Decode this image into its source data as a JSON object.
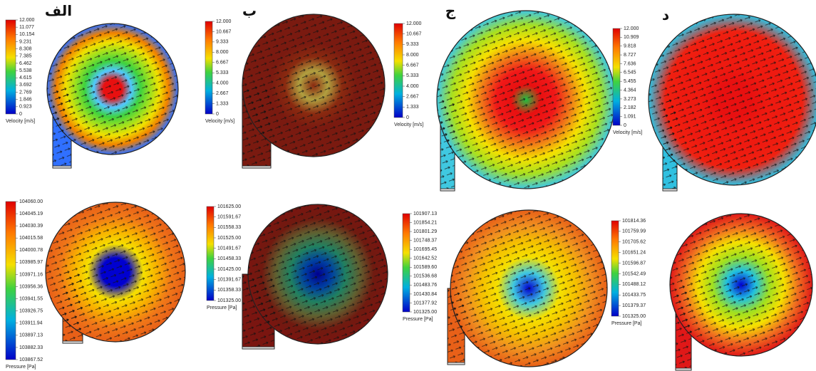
{
  "panels": [
    {
      "label": "الف",
      "velocity": {
        "title": "Velocity [m/s]",
        "ticks": [
          "12.000",
          "11.077",
          "10.154",
          "9.231",
          "8.308",
          "7.385",
          "6.462",
          "5.538",
          "4.615",
          "3.692",
          "2.769",
          "1.846",
          "0.923",
          "0"
        ]
      },
      "pressure": {
        "title": "Pressure [Pa]",
        "ticks": [
          "104060.00",
          "104045.19",
          "104030.39",
          "104015.58",
          "104000.78",
          "103985.97",
          "103971.16",
          "103956.36",
          "103941.55",
          "103926.75",
          "103911.94",
          "103897.13",
          "103882.33",
          "103867.52"
        ]
      }
    },
    {
      "label": "ب",
      "velocity": {
        "title": "Velocity [m/s]",
        "ticks": [
          "12.000",
          "10.667",
          "9.333",
          "8.000",
          "6.667",
          "5.333",
          "4.000",
          "2.667",
          "1.333",
          "0"
        ]
      },
      "pressure": {
        "title": "Pressure [Pa]",
        "ticks": [
          "101625.00",
          "101591.67",
          "101558.33",
          "101525.00",
          "101491.67",
          "101458.33",
          "101425.00",
          "101391.67",
          "101358.33",
          "101325.00"
        ]
      }
    },
    {
      "label": "ج",
      "velocity": {
        "title": "Velocity [m/s]",
        "ticks": [
          "12.000",
          "10.667",
          "9.333",
          "8.000",
          "6.667",
          "5.333",
          "4.000",
          "2.667",
          "1.333",
          "0"
        ]
      },
      "pressure": {
        "title": "Pressure [Pa]",
        "ticks": [
          "101907.13",
          "101854.21",
          "101801.29",
          "101748.37",
          "101695.45",
          "101642.52",
          "101589.60",
          "101536.68",
          "101483.76",
          "101430.84",
          "101377.92",
          "101325.00"
        ]
      }
    },
    {
      "label": "د",
      "velocity": {
        "title": "Velocity [m/s]",
        "ticks": [
          "12.000",
          "10.909",
          "9.818",
          "8.727",
          "7.636",
          "6.545",
          "5.455",
          "4.364",
          "3.273",
          "2.182",
          "1.091",
          "0"
        ]
      },
      "pressure": {
        "title": "Pressure [Pa]",
        "ticks": [
          "101814.36",
          "101759.99",
          "101705.62",
          "101651.24",
          "101596.87",
          "101542.49",
          "101488.12",
          "101433.75",
          "101379.37",
          "101325.00"
        ]
      }
    }
  ]
}
